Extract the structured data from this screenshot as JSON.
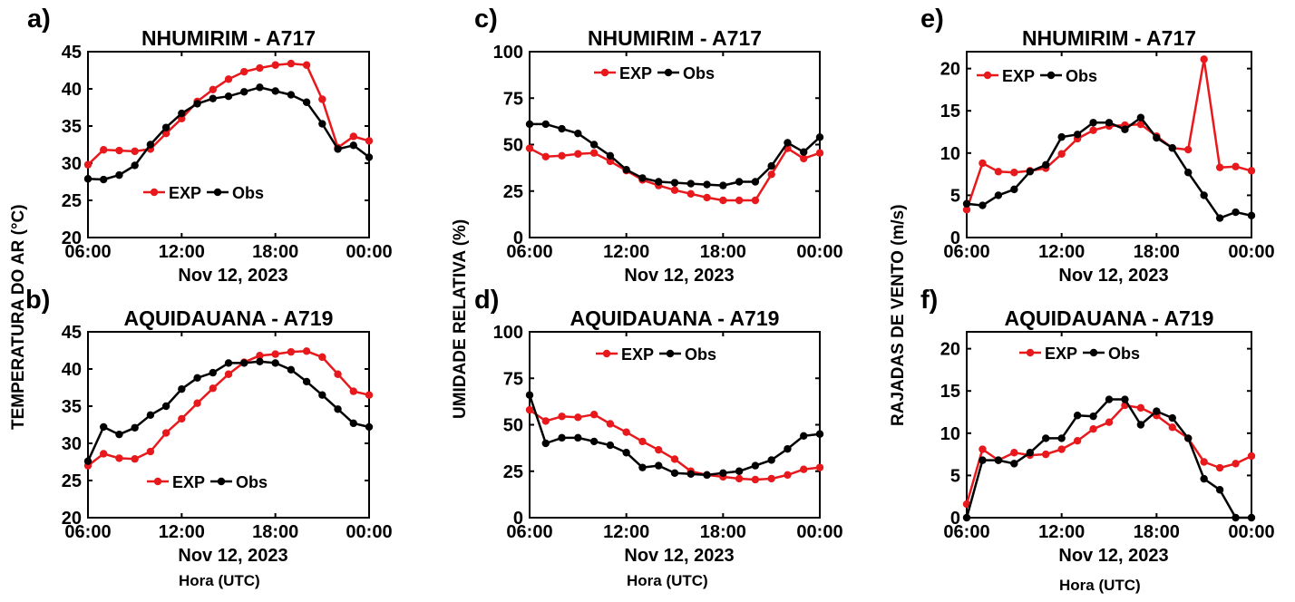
{
  "colors": {
    "exp": "#e8191c",
    "obs": "#000000",
    "axis": "#000000",
    "background": "#ffffff"
  },
  "hora_label": "Hora (UTC)",
  "ylabels": {
    "temperature": "TEMPERATURA DO AR (°C)",
    "humidity": "UMIDADE RELATIVA (%)",
    "wind": "RAJADAS DE VENTO (m/s)"
  },
  "chart_data": [
    {
      "panel": "a)",
      "type": "line",
      "title": "NHUMIRIM - A717",
      "date_label": "Nov 12, 2023",
      "xlabel": "",
      "x_ticks": [
        "06:00",
        "12:00",
        "18:00",
        "00:00"
      ],
      "y_ticks": [
        "20",
        "25",
        "30",
        "35",
        "40",
        "45"
      ],
      "ylim": [
        20,
        45
      ],
      "legend": "center-left",
      "x_hours": [
        6,
        7,
        8,
        9,
        10,
        11,
        12,
        13,
        14,
        15,
        16,
        17,
        18,
        19,
        20,
        21,
        22,
        23,
        24
      ],
      "series": [
        {
          "name": "EXP",
          "values": [
            29.8,
            31.8,
            31.7,
            31.6,
            31.9,
            34.0,
            36.0,
            38.3,
            39.9,
            41.3,
            42.3,
            42.8,
            43.2,
            43.4,
            43.2,
            38.6,
            32.1,
            33.6,
            33.0
          ]
        },
        {
          "name": "Obs",
          "values": [
            27.9,
            27.8,
            28.4,
            29.7,
            32.5,
            34.8,
            36.7,
            38.0,
            38.7,
            39.0,
            39.6,
            40.2,
            39.7,
            39.2,
            38.2,
            35.3,
            31.9,
            32.4,
            30.8
          ]
        }
      ]
    },
    {
      "panel": "b)",
      "type": "line",
      "title": "AQUIDAUANA - A719",
      "date_label": "Nov 12, 2023",
      "xlabel": "",
      "x_ticks": [
        "06:00",
        "12:00",
        "18:00",
        "00:00"
      ],
      "y_ticks": [
        "20",
        "25",
        "30",
        "35",
        "40",
        "45"
      ],
      "ylim": [
        20,
        45
      ],
      "legend": "bottom-center",
      "x_hours": [
        6,
        7,
        8,
        9,
        10,
        11,
        12,
        13,
        14,
        15,
        16,
        17,
        18,
        19,
        20,
        21,
        22,
        23,
        24
      ],
      "series": [
        {
          "name": "EXP",
          "values": [
            27.0,
            28.6,
            28.0,
            27.9,
            28.9,
            31.4,
            33.3,
            35.4,
            37.4,
            39.3,
            40.9,
            41.8,
            42.0,
            42.3,
            42.4,
            41.6,
            39.3,
            37.0,
            36.5
          ]
        },
        {
          "name": "Obs",
          "values": [
            27.6,
            32.2,
            31.2,
            32.1,
            33.8,
            35.0,
            37.3,
            38.8,
            39.5,
            40.8,
            40.8,
            41.0,
            40.8,
            39.9,
            38.3,
            36.5,
            34.6,
            32.7,
            32.2
          ]
        }
      ]
    },
    {
      "panel": "c)",
      "type": "line",
      "title": "NHUMIRIM - A717",
      "date_label": "Nov 12, 2023",
      "xlabel": "",
      "x_ticks": [
        "06:00",
        "12:00",
        "18:00",
        "00:00"
      ],
      "y_ticks": [
        "0",
        "25",
        "50",
        "75",
        "100"
      ],
      "ylim": [
        0,
        100
      ],
      "legend": "top-left",
      "x_hours": [
        6,
        7,
        8,
        9,
        10,
        11,
        12,
        13,
        14,
        15,
        16,
        17,
        18,
        19,
        20,
        21,
        22,
        23,
        24
      ],
      "series": [
        {
          "name": "EXP",
          "values": [
            48,
            43.5,
            44,
            45,
            45.5,
            41,
            36,
            31,
            28,
            25.5,
            23.5,
            21.5,
            20,
            20,
            20,
            34,
            48,
            42.5,
            45.5
          ]
        },
        {
          "name": "Obs",
          "values": [
            61,
            61,
            58.5,
            56,
            50,
            44,
            36.5,
            32,
            30,
            29.5,
            29,
            28.5,
            28,
            30,
            30,
            38.5,
            51,
            46,
            54
          ]
        }
      ]
    },
    {
      "panel": "d)",
      "type": "line",
      "title": "AQUIDAUANA - A719",
      "date_label": "Nov 12, 2023",
      "xlabel": "",
      "x_ticks": [
        "06:00",
        "12:00",
        "18:00",
        "00:00"
      ],
      "y_ticks": [
        "0",
        "25",
        "50",
        "75",
        "100"
      ],
      "ylim": [
        0,
        100
      ],
      "legend": "top-center",
      "x_hours": [
        6,
        7,
        8,
        9,
        10,
        11,
        12,
        13,
        14,
        15,
        16,
        17,
        18,
        19,
        20,
        21,
        22,
        23,
        24
      ],
      "series": [
        {
          "name": "EXP",
          "values": [
            58,
            52,
            54.5,
            54,
            55.5,
            50.5,
            46,
            41,
            36.5,
            31.5,
            25,
            23,
            22,
            21,
            20.5,
            21,
            23,
            26,
            27
          ]
        },
        {
          "name": "Obs",
          "values": [
            66,
            40,
            43,
            43,
            41,
            39,
            35,
            27,
            28,
            24,
            23.5,
            23,
            24,
            25,
            28,
            31,
            37,
            44,
            45
          ]
        }
      ]
    },
    {
      "panel": "e)",
      "type": "line",
      "title": "NHUMIRIM - A717",
      "date_label": "Nov 12, 2023",
      "xlabel": "",
      "x_ticks": [
        "06:00",
        "12:00",
        "18:00",
        "00:00"
      ],
      "y_ticks": [
        "0",
        "5",
        "10",
        "15",
        "20"
      ],
      "ylim": [
        0,
        22
      ],
      "legend": "top-left",
      "x_hours": [
        6,
        7,
        8,
        9,
        10,
        11,
        12,
        13,
        14,
        15,
        16,
        17,
        18,
        19,
        20,
        21,
        22,
        23,
        24
      ],
      "series": [
        {
          "name": "EXP",
          "values": [
            3.3,
            8.8,
            7.8,
            7.7,
            7.9,
            8.2,
            9.9,
            11.7,
            12.7,
            13.2,
            13.3,
            13.4,
            12.0,
            10.6,
            10.4,
            21.1,
            8.3,
            8.4,
            7.9
          ]
        },
        {
          "name": "Obs",
          "values": [
            4.0,
            3.8,
            5.0,
            5.7,
            7.8,
            8.6,
            11.9,
            12.2,
            13.6,
            13.6,
            12.8,
            14.2,
            11.8,
            10.6,
            7.7,
            5.0,
            2.3,
            3.0,
            2.6
          ]
        }
      ]
    },
    {
      "panel": "f)",
      "type": "line",
      "title": "AQUIDAUANA - A719",
      "date_label": "Nov 12, 2023",
      "xlabel": "",
      "x_ticks": [
        "06:00",
        "12:00",
        "18:00",
        "00:00"
      ],
      "y_ticks": [
        "0",
        "5",
        "10",
        "15",
        "20"
      ],
      "ylim": [
        0,
        22
      ],
      "legend": "top-center",
      "x_hours": [
        6,
        7,
        8,
        9,
        10,
        11,
        12,
        13,
        14,
        15,
        16,
        17,
        18,
        19,
        20,
        21,
        22,
        23,
        24
      ],
      "series": [
        {
          "name": "EXP",
          "values": [
            1.6,
            8.1,
            6.8,
            7.7,
            7.4,
            7.5,
            8.1,
            9.1,
            10.5,
            11.3,
            13.3,
            13.0,
            12.1,
            10.7,
            9.4,
            6.6,
            5.9,
            6.4,
            7.3
          ]
        },
        {
          "name": "Obs",
          "values": [
            0.0,
            6.8,
            6.8,
            6.4,
            7.7,
            9.4,
            9.4,
            12.1,
            12.0,
            14.0,
            14.0,
            11.0,
            12.6,
            11.8,
            9.4,
            4.6,
            3.3,
            0.0,
            0.0
          ]
        }
      ]
    }
  ]
}
